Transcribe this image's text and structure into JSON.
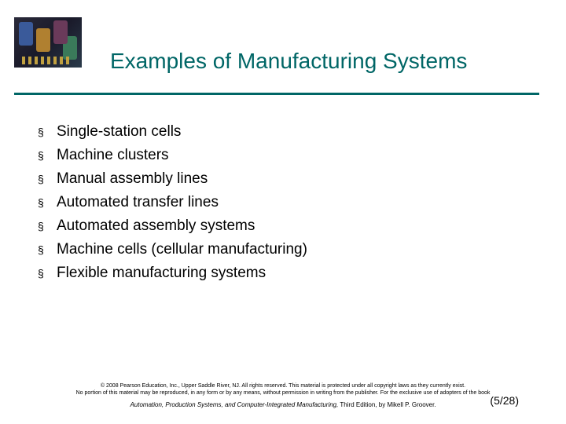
{
  "title": "Examples of Manufacturing Systems",
  "title_color": "#006666",
  "rule_color": "#006666",
  "bullets": {
    "glyph": "§",
    "items": [
      "Single-station cells",
      "Machine clusters",
      "Manual assembly lines",
      "Automated transfer lines",
      "Automated assembly systems",
      "Machine cells (cellular manufacturing)",
      "Flexible manufacturing systems"
    ]
  },
  "footer": {
    "copyright_line1": "© 2008 Pearson Education, Inc., Upper Saddle River, NJ. All rights reserved. This material is protected under all copyright laws as they currently exist.",
    "copyright_line2": "No portion of this material may be reproduced, in any form or by any means, without permission in writing from the publisher. For the exclusive use of adopters of the book",
    "book_italic": "Automation, Production Systems, and Computer-Integrated Manufacturing,",
    "book_rest": " Third Edition, by Mikell P. Groover."
  },
  "page": "(5/28)"
}
